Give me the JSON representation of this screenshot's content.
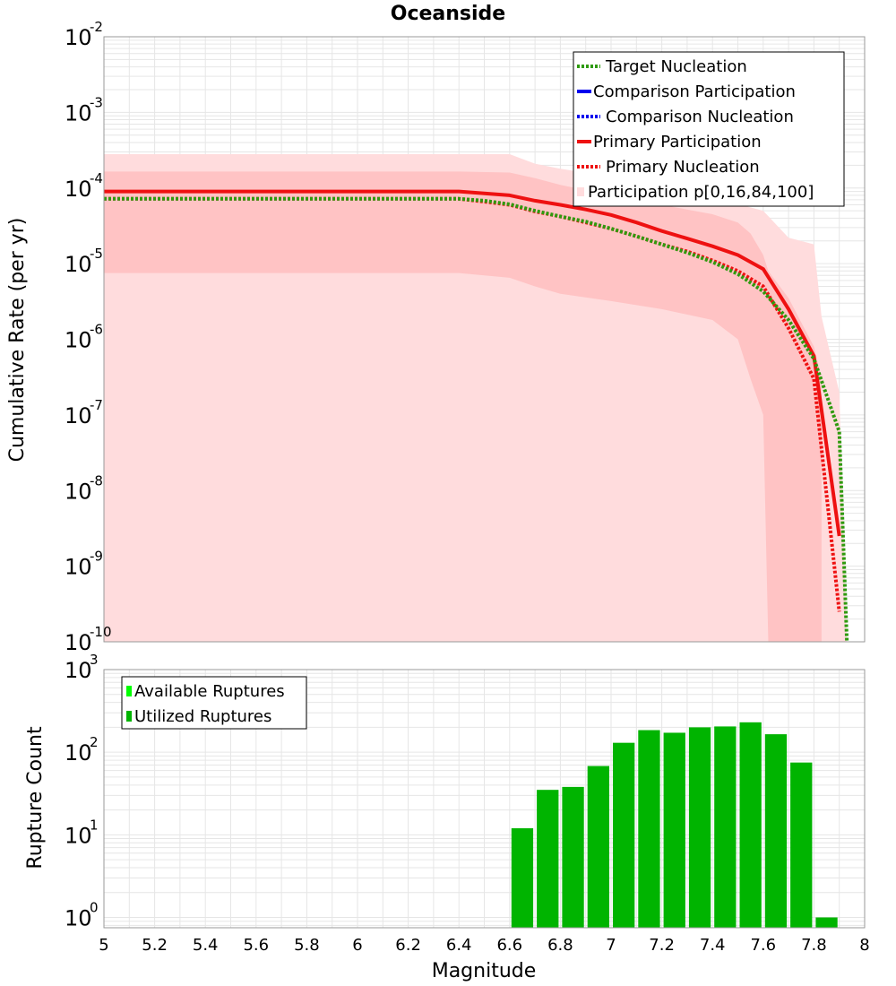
{
  "colors": {
    "target": "#2e9a0e",
    "comparison": "#0000ee",
    "primary": "#ee1111",
    "band_outer": "#ffdcdd",
    "band_inner": "#ffc3c4",
    "bar_utilized": "#00b400",
    "bar_available": "#00ff00",
    "grid": "#e6e6e6"
  },
  "chart_data": [
    {
      "type": "line",
      "title": "Oceanside",
      "xlabel": "Magnitude",
      "ylabel": "Cumulative Rate (per yr)",
      "xlim": [
        5,
        8
      ],
      "ylim": [
        1e-10,
        0.01
      ],
      "yscale": "log",
      "grid": true,
      "legend_position": "top-right",
      "y_tick_exponents": [
        -2,
        -3,
        -4,
        -5,
        -6,
        -7,
        -8,
        -9,
        -10
      ],
      "series": [
        {
          "name": "Target Nucleation",
          "style": "dotted",
          "color_key": "target",
          "x": [
            5.0,
            6.4,
            6.5,
            6.6,
            6.7,
            6.8,
            6.9,
            7.0,
            7.1,
            7.2,
            7.3,
            7.4,
            7.5,
            7.6,
            7.7,
            7.8,
            7.9,
            7.93
          ],
          "y": [
            7.2e-05,
            7.2e-05,
            6.8e-05,
            6.1e-05,
            5e-05,
            4.2e-05,
            3.6e-05,
            2.9e-05,
            2.3e-05,
            1.8e-05,
            1.4e-05,
            1.05e-05,
            7.3e-06,
            4.3e-06,
            1.8e-06,
            5.5e-07,
            6e-08,
            1e-10
          ]
        },
        {
          "name": "Comparison Participation",
          "style": "solid",
          "color_key": "comparison",
          "x": [],
          "y": []
        },
        {
          "name": "Comparison Nucleation",
          "style": "dotted",
          "color_key": "comparison",
          "x": [],
          "y": []
        },
        {
          "name": "Primary Participation",
          "style": "solid",
          "color_key": "primary",
          "x": [
            5.0,
            6.4,
            6.5,
            6.6,
            6.7,
            6.8,
            6.9,
            7.0,
            7.1,
            7.2,
            7.3,
            7.4,
            7.5,
            7.6,
            7.7,
            7.8,
            7.9
          ],
          "y": [
            9e-05,
            9e-05,
            8.5e-05,
            8e-05,
            6.8e-05,
            6e-05,
            5.2e-05,
            4.4e-05,
            3.5e-05,
            2.7e-05,
            2.15e-05,
            1.7e-05,
            1.3e-05,
            8.5e-06,
            2.5e-06,
            6e-07,
            2.5e-09
          ]
        },
        {
          "name": "Primary Nucleation",
          "style": "dotted",
          "color_key": "primary",
          "x": [
            5.0,
            6.4,
            6.5,
            6.6,
            6.7,
            6.8,
            6.9,
            7.0,
            7.1,
            7.2,
            7.3,
            7.4,
            7.5,
            7.6,
            7.7,
            7.8,
            7.9
          ],
          "y": [
            7.2e-05,
            7.2e-05,
            6.6e-05,
            6e-05,
            4.9e-05,
            4.2e-05,
            3.5e-05,
            2.9e-05,
            2.3e-05,
            1.8e-05,
            1.45e-05,
            1.1e-05,
            8e-06,
            5e-06,
            1.4e-06,
            3e-07,
            2.5e-10
          ]
        },
        {
          "name": "Participation p[0,16,84,100]",
          "style": "band",
          "color_key": "band_outer",
          "x": [
            5.0,
            6.4,
            6.6,
            6.7,
            6.8,
            7.0,
            7.2,
            7.4,
            7.6,
            7.7,
            7.8,
            7.83,
            7.9,
            7.93
          ],
          "p100": [
            0.00028,
            0.00028,
            0.00028,
            0.00021,
            0.00018,
            0.00014,
            9e-05,
            7.5e-05,
            5e-05,
            2.2e-05,
            1.8e-05,
            2e-06,
            2e-07,
            1e-10
          ],
          "p0": [
            1e-10,
            1e-10,
            1e-10,
            1e-10,
            1e-10,
            1e-10,
            1e-10,
            1e-10,
            1e-10,
            1e-10,
            1e-10,
            1e-10,
            1e-10,
            1e-10
          ],
          "band_x": [
            5.0,
            6.4,
            6.6,
            6.7,
            6.8,
            7.0,
            7.2,
            7.4,
            7.5,
            7.55,
            7.6,
            7.62,
            7.7,
            7.8,
            7.83
          ],
          "p84": [
            0.000165,
            0.000165,
            0.00016,
            0.000135,
            0.00011,
            8e-05,
            6e-05,
            4.5e-05,
            3.5e-05,
            2.5e-05,
            1.3e-05,
            8e-06,
            3.5e-06,
            8e-07,
            3e-07
          ],
          "p16": [
            7.5e-06,
            7.5e-06,
            6.5e-06,
            5e-06,
            4e-06,
            3.2e-06,
            2.5e-06,
            1.8e-06,
            1e-06,
            3e-07,
            1e-07,
            1e-10,
            1e-10,
            1e-10,
            1e-10
          ]
        }
      ]
    },
    {
      "type": "bar",
      "xlabel": "Magnitude",
      "ylabel": "Rupture Count",
      "xlim": [
        5,
        8
      ],
      "ylim": [
        0.75,
        1000
      ],
      "yscale": "log",
      "grid": true,
      "legend_position": "top-left",
      "y_tick_exponents": [
        3,
        2,
        1,
        0
      ],
      "x_ticks": [
        "5",
        "5.2",
        "5.4",
        "5.6",
        "5.8",
        "6",
        "6.2",
        "6.4",
        "6.6",
        "6.8",
        "7",
        "7.2",
        "7.4",
        "7.6",
        "7.8",
        "8"
      ],
      "x_tick_values": [
        5,
        5.2,
        5.4,
        5.6,
        5.8,
        6,
        6.2,
        6.4,
        6.6,
        6.8,
        7,
        7.2,
        7.4,
        7.6,
        7.8,
        8
      ],
      "bin_width": 0.1,
      "series": [
        {
          "name": "Available Ruptures",
          "color_key": "bar_available",
          "x": [],
          "values": []
        },
        {
          "name": "Utilized Ruptures",
          "color_key": "bar_utilized",
          "x": [
            6.65,
            6.75,
            6.85,
            6.95,
            7.05,
            7.15,
            7.25,
            7.35,
            7.45,
            7.55,
            7.65,
            7.75,
            7.85
          ],
          "values": [
            12,
            35,
            38,
            68,
            130,
            185,
            172,
            200,
            205,
            230,
            165,
            75,
            1
          ]
        }
      ]
    }
  ]
}
